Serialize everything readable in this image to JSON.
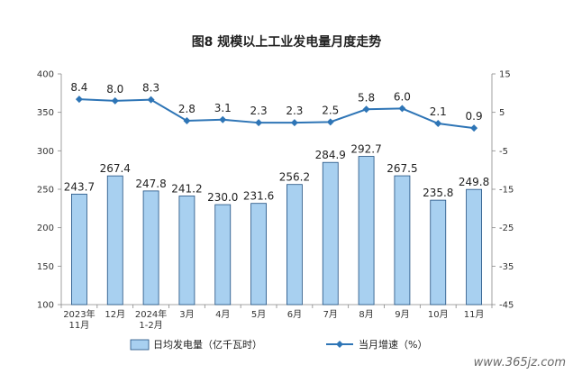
{
  "chart_data": {
    "type": "bar",
    "title": "图8  规模以上工业发电量月度走势",
    "categories": [
      "2023年\n11月",
      "12月",
      "2024年\n1-2月",
      "3月",
      "4月",
      "5月",
      "6月",
      "7月",
      "8月",
      "9月",
      "10月",
      "11月"
    ],
    "series": [
      {
        "name": "日均发电量（亿千瓦时）",
        "type": "bar",
        "axis": "left",
        "color": "#a8d0f0",
        "stroke": "#1f4f80",
        "values": [
          243.7,
          267.4,
          247.8,
          241.2,
          230.0,
          231.6,
          256.2,
          284.9,
          292.7,
          267.5,
          235.8,
          249.8
        ],
        "labels": [
          "243.7",
          "267.4",
          "247.8",
          "241.2",
          "230.0",
          "231.6",
          "256.2",
          "284.9",
          "292.7",
          "267.5",
          "235.8",
          "249.8"
        ]
      },
      {
        "name": "当月增速（%）",
        "type": "line",
        "axis": "right",
        "color": "#2e75b6",
        "values": [
          8.4,
          8.0,
          8.3,
          2.8,
          3.1,
          2.3,
          2.3,
          2.5,
          5.8,
          6.0,
          2.1,
          0.9
        ],
        "labels": [
          "8.4",
          "8.0",
          "8.3",
          "2.8",
          "3.1",
          "2.3",
          "2.3",
          "2.5",
          "5.8",
          "6.0",
          "2.1",
          "0.9"
        ]
      }
    ],
    "y_left": {
      "min": 100,
      "max": 400,
      "ticks": [
        "400",
        "350",
        "300",
        "250",
        "200",
        "150",
        "100"
      ]
    },
    "y_right": {
      "min": -45,
      "max": 15,
      "ticks": [
        "15",
        "5",
        "-5",
        "-15",
        "-25",
        "-35",
        "-45"
      ]
    },
    "grid": false,
    "legend_position": "bottom"
  },
  "watermark": "www.365jz.com"
}
